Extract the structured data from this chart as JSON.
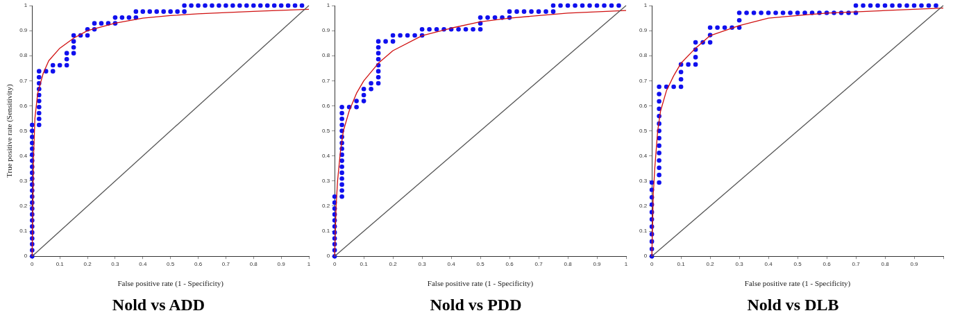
{
  "chart_data": [
    {
      "type": "scatter",
      "title": "Nold vs ADD",
      "xlabel": "False positive rate (1 - Specificity)",
      "ylabel": "True positive rate (Sensitivity)",
      "xlim": [
        0,
        1
      ],
      "ylim": [
        0,
        1
      ],
      "xticks": [
        0,
        0.1,
        0.2,
        0.3,
        0.4,
        0.5,
        0.6,
        0.7,
        0.8,
        0.9,
        1
      ],
      "yticks": [
        0,
        0.1,
        0.2,
        0.3,
        0.4,
        0.5,
        0.6,
        0.7,
        0.8,
        0.9,
        1
      ],
      "grid": false,
      "legend": false,
      "series": [
        {
          "type": "line",
          "color": "#555555",
          "marker": "none",
          "x": [
            0,
            1
          ],
          "values": [
            0,
            1
          ]
        },
        {
          "type": "line",
          "color": "#d01010",
          "marker": "none",
          "x": [
            0,
            0.005,
            0.01,
            0.02,
            0.04,
            0.06,
            0.1,
            0.15,
            0.2,
            0.3,
            0.4,
            0.5,
            0.6,
            0.8,
            1
          ],
          "values": [
            0,
            0.4,
            0.55,
            0.65,
            0.73,
            0.78,
            0.83,
            0.87,
            0.9,
            0.93,
            0.95,
            0.96,
            0.967,
            0.977,
            0.985
          ]
        },
        {
          "color": "#1010ee",
          "marker": "circle",
          "x": [
            0,
            0,
            0,
            0,
            0,
            0,
            0,
            0,
            0,
            0,
            0,
            0,
            0,
            0,
            0,
            0,
            0,
            0,
            0,
            0,
            0,
            0,
            0,
            0.025,
            0.025,
            0.025,
            0.025,
            0.025,
            0.025,
            0.025,
            0.025,
            0.025,
            0.025,
            0.05,
            0.075,
            0.075,
            0.1,
            0.125,
            0.125,
            0.125,
            0.15,
            0.15,
            0.15,
            0.15,
            0.175,
            0.2,
            0.2,
            0.225,
            0.225,
            0.25,
            0.275,
            0.3,
            0.3,
            0.325,
            0.35,
            0.375,
            0.375,
            0.4,
            0.425,
            0.45,
            0.475,
            0.5,
            0.525,
            0.55,
            0.55,
            0.575,
            0.6,
            0.625,
            0.65,
            0.675,
            0.7,
            0.725,
            0.75,
            0.775,
            0.8,
            0.825,
            0.85,
            0.875,
            0.9,
            0.925,
            0.95,
            0.975
          ],
          "values": [
            0,
            0.024,
            0.048,
            0.071,
            0.095,
            0.119,
            0.143,
            0.167,
            0.19,
            0.214,
            0.238,
            0.262,
            0.286,
            0.31,
            0.333,
            0.357,
            0.381,
            0.405,
            0.429,
            0.452,
            0.476,
            0.5,
            0.524,
            0.524,
            0.548,
            0.571,
            0.595,
            0.619,
            0.643,
            0.667,
            0.69,
            0.714,
            0.738,
            0.738,
            0.738,
            0.762,
            0.762,
            0.762,
            0.786,
            0.81,
            0.81,
            0.833,
            0.857,
            0.881,
            0.881,
            0.881,
            0.905,
            0.905,
            0.929,
            0.929,
            0.929,
            0.929,
            0.952,
            0.952,
            0.952,
            0.952,
            0.976,
            0.976,
            0.976,
            0.976,
            0.976,
            0.976,
            0.976,
            0.976,
            1,
            1,
            1,
            1,
            1,
            1,
            1,
            1,
            1,
            1,
            1,
            1,
            1,
            1,
            1,
            1,
            1,
            1
          ]
        }
      ]
    },
    {
      "type": "scatter",
      "title": "Nold vs PDD",
      "xlabel": "False positive rate (1 - Specificity)",
      "xlim": [
        0,
        1
      ],
      "ylim": [
        0,
        1
      ],
      "xticks": [
        0,
        0.1,
        0.2,
        0.3,
        0.4,
        0.5,
        0.6,
        0.7,
        0.8,
        0.9,
        1
      ],
      "yticks": [
        0,
        0.1,
        0.2,
        0.3,
        0.4,
        0.5,
        0.6,
        0.7,
        0.8,
        0.9,
        1
      ],
      "grid": false,
      "legend": false,
      "series": [
        {
          "type": "line",
          "color": "#555555",
          "marker": "none",
          "x": [
            0,
            1
          ],
          "values": [
            0,
            1
          ]
        },
        {
          "type": "line",
          "color": "#d01010",
          "marker": "none",
          "x": [
            0,
            0.005,
            0.01,
            0.02,
            0.03,
            0.05,
            0.075,
            0.1,
            0.15,
            0.2,
            0.3,
            0.4,
            0.5,
            0.6,
            0.8,
            1
          ],
          "values": [
            0,
            0.2,
            0.3,
            0.42,
            0.5,
            0.58,
            0.65,
            0.7,
            0.77,
            0.82,
            0.88,
            0.91,
            0.935,
            0.95,
            0.97,
            0.98
          ]
        },
        {
          "color": "#1010ee",
          "marker": "circle",
          "x": [
            0,
            0,
            0,
            0,
            0,
            0,
            0,
            0,
            0,
            0,
            0,
            0.025,
            0.025,
            0.025,
            0.025,
            0.025,
            0.025,
            0.025,
            0.025,
            0.025,
            0.025,
            0.025,
            0.025,
            0.025,
            0.025,
            0.025,
            0.025,
            0.05,
            0.075,
            0.075,
            0.1,
            0.1,
            0.1,
            0.125,
            0.125,
            0.15,
            0.15,
            0.15,
            0.15,
            0.15,
            0.15,
            0.15,
            0.15,
            0.175,
            0.2,
            0.2,
            0.225,
            0.25,
            0.275,
            0.3,
            0.3,
            0.325,
            0.35,
            0.375,
            0.4,
            0.425,
            0.45,
            0.475,
            0.5,
            0.5,
            0.5,
            0.525,
            0.55,
            0.575,
            0.6,
            0.6,
            0.625,
            0.65,
            0.675,
            0.7,
            0.725,
            0.75,
            0.75,
            0.775,
            0.8,
            0.825,
            0.85,
            0.875,
            0.9,
            0.925,
            0.95,
            0.975
          ],
          "values": [
            0,
            0.024,
            0.048,
            0.071,
            0.095,
            0.119,
            0.143,
            0.167,
            0.19,
            0.214,
            0.238,
            0.238,
            0.262,
            0.286,
            0.31,
            0.333,
            0.357,
            0.381,
            0.405,
            0.429,
            0.452,
            0.476,
            0.5,
            0.524,
            0.548,
            0.571,
            0.595,
            0.595,
            0.595,
            0.619,
            0.619,
            0.643,
            0.667,
            0.667,
            0.69,
            0.69,
            0.714,
            0.738,
            0.762,
            0.786,
            0.81,
            0.833,
            0.857,
            0.857,
            0.857,
            0.881,
            0.881,
            0.881,
            0.881,
            0.881,
            0.905,
            0.905,
            0.905,
            0.905,
            0.905,
            0.905,
            0.905,
            0.905,
            0.905,
            0.929,
            0.952,
            0.952,
            0.952,
            0.952,
            0.952,
            0.976,
            0.976,
            0.976,
            0.976,
            0.976,
            0.976,
            0.976,
            1,
            1,
            1,
            1,
            1,
            1,
            1,
            1,
            1,
            1
          ]
        }
      ]
    },
    {
      "type": "scatter",
      "title": "Nold vs DLB",
      "xlabel": "False positive rate (1 - Specificity)",
      "xlim": [
        0,
        1
      ],
      "ylim": [
        0,
        1
      ],
      "xticks": [
        0,
        0.1,
        0.2,
        0.3,
        0.4,
        0.5,
        0.6,
        0.7,
        0.8,
        0.9,
        {
          "value": 1,
          "label": null
        }
      ],
      "yticks": [
        0,
        0.1,
        0.2,
        0.3,
        0.4,
        0.5,
        0.6,
        0.7,
        0.8,
        0.9,
        1
      ],
      "grid": false,
      "legend": false,
      "series": [
        {
          "type": "line",
          "color": "#555555",
          "marker": "none",
          "x": [
            0,
            1
          ],
          "values": [
            0,
            1
          ]
        },
        {
          "type": "line",
          "color": "#d01010",
          "marker": "none",
          "x": [
            0,
            0.005,
            0.01,
            0.02,
            0.03,
            0.05,
            0.075,
            0.1,
            0.15,
            0.2,
            0.3,
            0.4,
            0.5,
            0.6,
            0.8,
            1
          ],
          "values": [
            0,
            0.25,
            0.35,
            0.5,
            0.58,
            0.66,
            0.72,
            0.77,
            0.83,
            0.88,
            0.92,
            0.95,
            0.96,
            0.97,
            0.98,
            0.99
          ]
        },
        {
          "color": "#1010ee",
          "marker": "circle",
          "x": [
            0,
            0,
            0,
            0,
            0,
            0,
            0,
            0,
            0,
            0,
            0,
            0.025,
            0.025,
            0.025,
            0.025,
            0.025,
            0.025,
            0.025,
            0.025,
            0.025,
            0.025,
            0.025,
            0.025,
            0.025,
            0.025,
            0.05,
            0.075,
            0.1,
            0.1,
            0.1,
            0.1,
            0.125,
            0.15,
            0.15,
            0.15,
            0.15,
            0.175,
            0.2,
            0.2,
            0.2,
            0.225,
            0.25,
            0.275,
            0.3,
            0.3,
            0.3,
            0.325,
            0.35,
            0.375,
            0.4,
            0.425,
            0.45,
            0.475,
            0.5,
            0.525,
            0.55,
            0.575,
            0.6,
            0.625,
            0.65,
            0.675,
            0.7,
            0.7,
            0.725,
            0.75,
            0.775,
            0.8,
            0.825,
            0.85,
            0.875,
            0.9,
            0.925,
            0.95,
            0.975
          ],
          "values": [
            0,
            0.029,
            0.059,
            0.088,
            0.118,
            0.147,
            0.176,
            0.206,
            0.235,
            0.265,
            0.294,
            0.294,
            0.324,
            0.353,
            0.382,
            0.412,
            0.441,
            0.471,
            0.5,
            0.529,
            0.559,
            0.588,
            0.618,
            0.647,
            0.676,
            0.676,
            0.676,
            0.676,
            0.706,
            0.735,
            0.765,
            0.765,
            0.765,
            0.794,
            0.824,
            0.853,
            0.853,
            0.853,
            0.882,
            0.912,
            0.912,
            0.912,
            0.912,
            0.912,
            0.941,
            0.971,
            0.971,
            0.971,
            0.971,
            0.971,
            0.971,
            0.971,
            0.971,
            0.971,
            0.971,
            0.971,
            0.971,
            0.971,
            0.971,
            0.971,
            0.971,
            0.971,
            1,
            1,
            1,
            1,
            1,
            1,
            1,
            1,
            1,
            1,
            1,
            1
          ]
        }
      ]
    }
  ]
}
